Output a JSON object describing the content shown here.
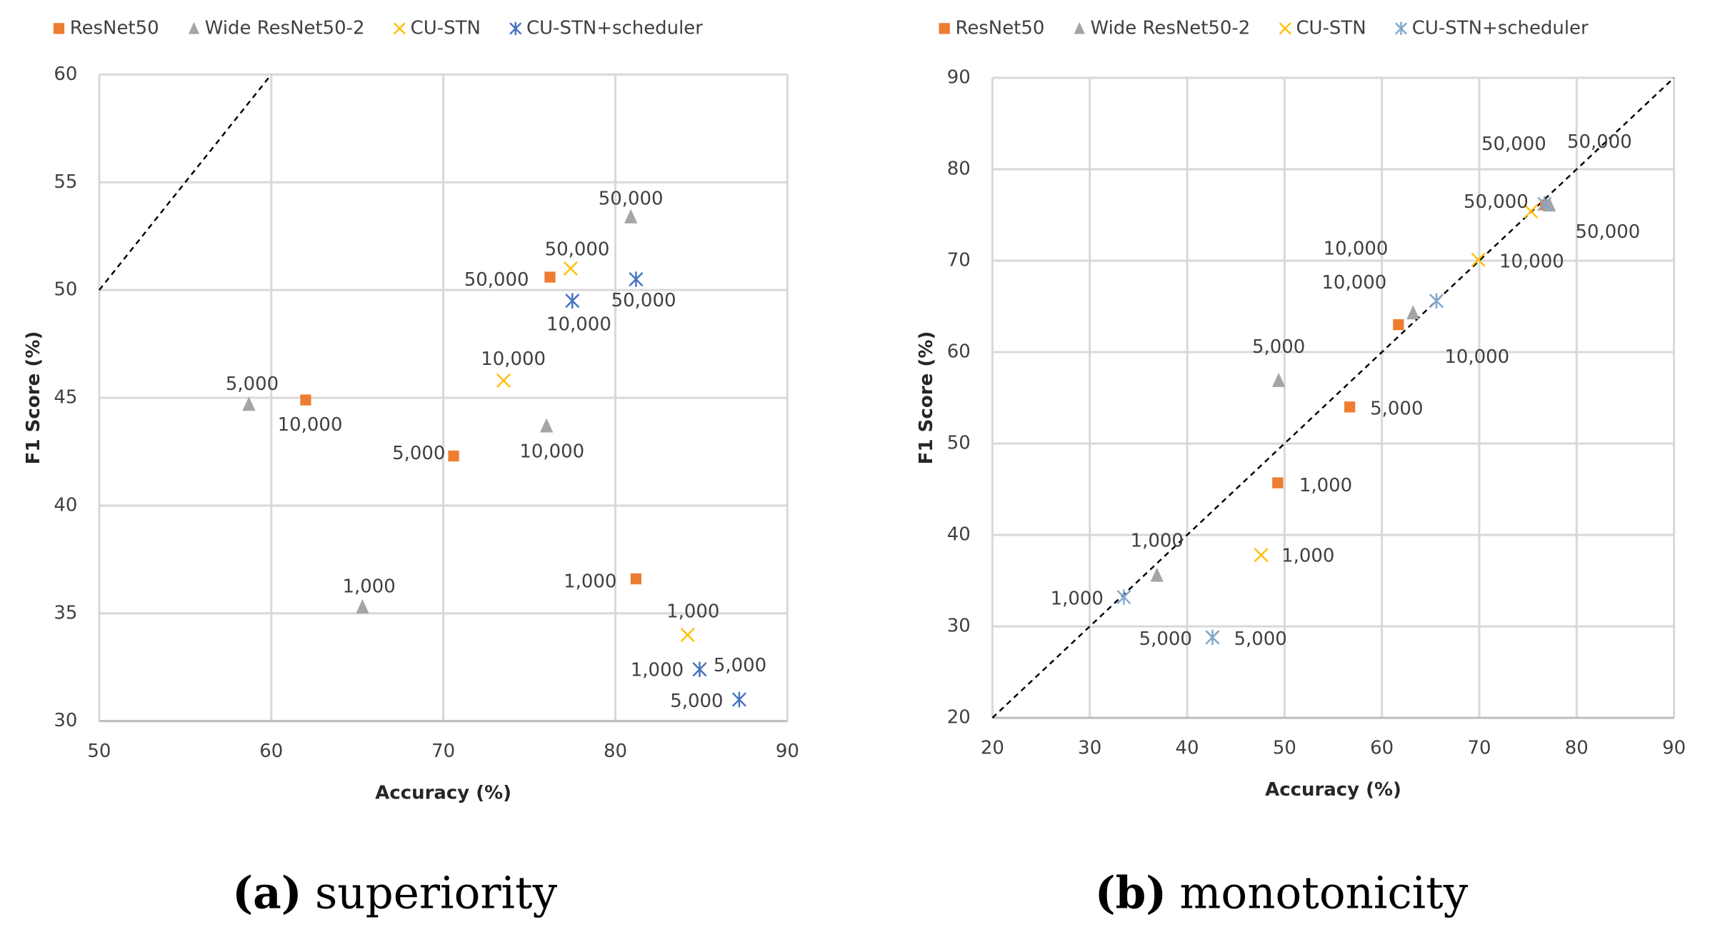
{
  "chart_data": [
    {
      "type": "scatter",
      "caption_tag": "(a)",
      "caption": "superiority",
      "x_label": "Accuracy (%)",
      "y_label": "F1 Score (%)",
      "xlim": [
        50,
        90
      ],
      "ylim": [
        30,
        60
      ],
      "xticks": [
        50,
        60,
        70,
        80,
        90
      ],
      "yticks": [
        30,
        35,
        40,
        45,
        50,
        55,
        60
      ],
      "grid": true,
      "diagonal": true,
      "legend": "top",
      "series": [
        {
          "name": "ResNet50",
          "color": "#ED7D31",
          "marker": "square",
          "x": [
            76.2,
            62.0,
            70.6,
            81.2
          ],
          "y": [
            50.6,
            44.9,
            42.3,
            36.6
          ],
          "point_labels": [
            "50,000",
            "10,000",
            "5,000",
            "1,000"
          ]
        },
        {
          "name": "Wide ResNet50-2",
          "color": "#A5A5A5",
          "marker": "triangle",
          "x": [
            80.9,
            76.0,
            58.7,
            65.3
          ],
          "y": [
            53.4,
            43.7,
            44.7,
            35.3
          ],
          "point_labels": [
            "50,000",
            "10,000",
            "5,000",
            "1,000"
          ]
        },
        {
          "name": "CU-STN",
          "color": "#FFC000",
          "marker": "x",
          "x": [
            77.4,
            73.5,
            84.2,
            84.9
          ],
          "y": [
            51.0,
            45.8,
            34.0,
            32.4
          ],
          "point_labels": [
            "50,000",
            "10,000",
            "1,000",
            "5,000"
          ]
        },
        {
          "name": "CU-STN+scheduler",
          "color": "#4472C4",
          "marker": "asterisk",
          "x": [
            81.2,
            77.5,
            84.9,
            87.2
          ],
          "y": [
            50.5,
            49.5,
            32.4,
            31.0
          ],
          "point_labels": [
            "50,000",
            "10,000",
            "1,000",
            "5,000"
          ]
        }
      ]
    },
    {
      "type": "scatter",
      "caption_tag": "(b)",
      "caption": "monotonicity",
      "x_label": "Accuracy (%)",
      "y_label": "F1 Score (%)",
      "xlim": [
        20,
        90
      ],
      "ylim": [
        20,
        90
      ],
      "xticks": [
        20,
        30,
        40,
        50,
        60,
        70,
        80,
        90
      ],
      "yticks": [
        20,
        30,
        40,
        50,
        60,
        70,
        80,
        90
      ],
      "grid": true,
      "diagonal": true,
      "legend": "top",
      "series": [
        {
          "name": "ResNet50",
          "color": "#ED7D31",
          "marker": "square",
          "x": [
            76.8,
            61.7,
            56.7,
            49.3
          ],
          "y": [
            76.1,
            63.0,
            54.0,
            45.7
          ],
          "point_labels": [
            "50,000",
            "10,000",
            "5,000",
            "1,000"
          ]
        },
        {
          "name": "Wide ResNet50-2",
          "color": "#A5A5A5",
          "marker": "triangle",
          "x": [
            77.2,
            63.2,
            49.4,
            36.9
          ],
          "y": [
            76.1,
            64.3,
            56.9,
            35.6
          ],
          "point_labels": [
            "50,000",
            "10,000",
            "5,000",
            "1,000"
          ]
        },
        {
          "name": "CU-STN",
          "color": "#FFC000",
          "marker": "x",
          "x": [
            75.3,
            69.9,
            47.6,
            42.6
          ],
          "y": [
            75.4,
            70.1,
            37.8,
            28.8
          ],
          "point_labels": [
            "50,000",
            "10,000",
            "1,000",
            "5,000"
          ]
        },
        {
          "name": "CU-STN+scheduler",
          "color": "#7FA7CF",
          "marker": "asterisk",
          "x": [
            76.7,
            65.6,
            42.6,
            33.5
          ],
          "y": [
            76.2,
            65.6,
            28.8,
            33.2
          ],
          "point_labels": [
            "50,000",
            "10,000",
            "5,000",
            "1,000"
          ]
        }
      ]
    }
  ]
}
